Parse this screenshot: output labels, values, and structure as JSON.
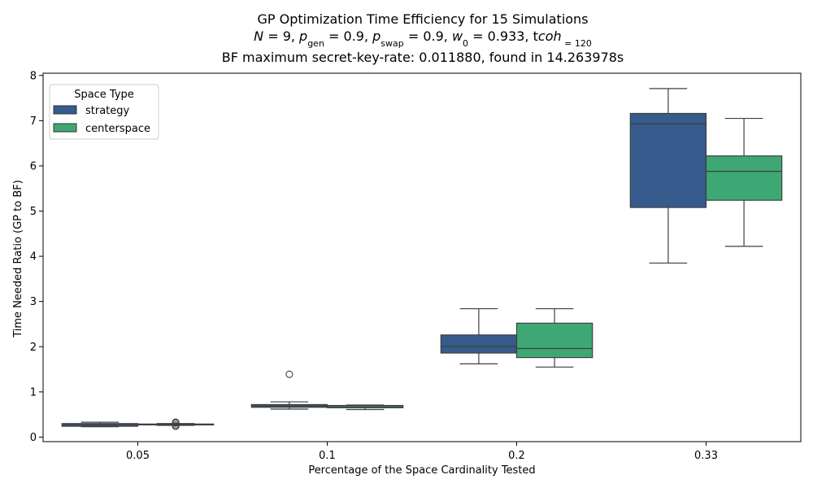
{
  "chart_data": {
    "type": "box",
    "title": {
      "line1": "GP Optimization Time Efficiency for 15 Simulations",
      "line2_parts": [
        "N",
        " = 9, ",
        "p",
        "gen",
        " = 0.9, ",
        "p",
        "swap",
        " = 0.9, ",
        "w",
        "0",
        " = 0.933, ",
        "t",
        "coh",
        " = 120"
      ],
      "line3": "BF maximum secret-key-rate: 0.011880, found in 14.263978s"
    },
    "xlabel": "Percentage of the Space Cardinality Tested",
    "ylabel": "Time Needed Ratio (GP to BF)",
    "categories": [
      "0.05",
      "0.1",
      "0.2",
      "0.33"
    ],
    "ylim": [
      -0.1,
      8.05
    ],
    "yticks": [
      "0",
      "1",
      "2",
      "3",
      "4",
      "5",
      "6",
      "7",
      "8"
    ],
    "legend": {
      "title": "Space Type",
      "placement": "upper-left"
    },
    "series": [
      {
        "name": "strategy",
        "color": "#365b8c",
        "boxes": [
          {
            "whislo": 0.23,
            "q1": 0.24,
            "med": 0.27,
            "q3": 0.3,
            "whishi": 0.33,
            "fliers": []
          },
          {
            "whislo": 0.62,
            "q1": 0.66,
            "med": 0.69,
            "q3": 0.72,
            "whishi": 0.78,
            "fliers": [
              1.39
            ]
          },
          {
            "whislo": 1.62,
            "q1": 1.86,
            "med": 2.01,
            "q3": 2.26,
            "whishi": 2.84,
            "fliers": []
          },
          {
            "whislo": 3.85,
            "q1": 5.08,
            "med": 6.93,
            "q3": 7.16,
            "whishi": 7.71,
            "fliers": []
          }
        ]
      },
      {
        "name": "centerspace",
        "color": "#3ea874",
        "boxes": [
          {
            "whislo": 0.26,
            "q1": 0.27,
            "med": 0.28,
            "q3": 0.29,
            "whishi": 0.3,
            "fliers": [
              0.24,
              0.27,
              0.31,
              0.33
            ]
          },
          {
            "whislo": 0.61,
            "q1": 0.65,
            "med": 0.67,
            "q3": 0.7,
            "whishi": 0.71,
            "fliers": []
          },
          {
            "whislo": 1.55,
            "q1": 1.76,
            "med": 1.96,
            "q3": 2.52,
            "whishi": 2.84,
            "fliers": []
          },
          {
            "whislo": 4.22,
            "q1": 5.24,
            "med": 5.88,
            "q3": 6.22,
            "whishi": 7.05,
            "fliers": []
          }
        ]
      }
    ]
  }
}
